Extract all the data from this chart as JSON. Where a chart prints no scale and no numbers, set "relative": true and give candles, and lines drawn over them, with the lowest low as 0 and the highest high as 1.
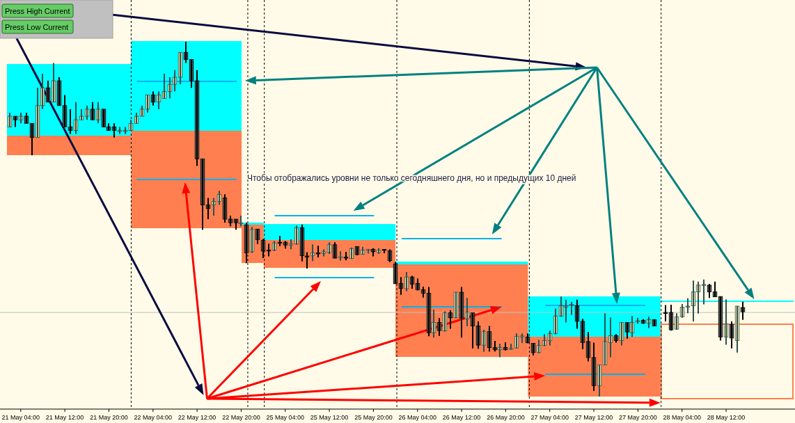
{
  "chart_data": {
    "type": "candlestick",
    "relative": true,
    "categories": [
      null,
      null,
      "21 May 04:00",
      null,
      null,
      null,
      null,
      null,
      null,
      null,
      "21 May 12:00",
      null,
      null,
      null,
      null,
      null,
      null,
      null,
      "21 May 20:00",
      null,
      null,
      null,
      null,
      null,
      null,
      null,
      "22 May 04:00",
      null,
      null,
      null,
      null,
      null,
      null,
      null,
      "22 May 12:00",
      null,
      null,
      null,
      null,
      null,
      null,
      null,
      "22 May 20:00",
      null,
      null,
      null,
      null,
      null,
      null,
      null,
      "25 May 04:00",
      null,
      null,
      null,
      null,
      null,
      null,
      null,
      "25 May 12:00",
      null,
      null,
      null,
      null,
      null,
      null,
      null,
      "25 May 20:00",
      null,
      null,
      null,
      null,
      null,
      null,
      null,
      "26 May 04:00",
      null,
      null,
      null,
      null,
      null,
      null,
      null,
      "26 May 12:00",
      null,
      null,
      null,
      null,
      null,
      null,
      null,
      "26 May 20:00",
      null,
      null,
      null,
      null,
      null,
      null,
      null,
      "27 May 04:00",
      null,
      null,
      null,
      null,
      null,
      null,
      null,
      "27 May 12:00",
      null,
      null,
      null,
      null,
      null,
      null,
      null,
      "27 May 20:00",
      null,
      null,
      null,
      null,
      null,
      null,
      null,
      "28 May 04:00",
      null,
      null,
      null,
      null,
      null,
      null,
      null,
      "28 May 12:00",
      null,
      null,
      null,
      null,
      null,
      null,
      null,
      null,
      null,
      null,
      null,
      null
    ],
    "ohlc": [
      [
        0.76,
        0.8,
        0.76,
        0.79
      ],
      [
        0.79,
        0.79,
        0.76,
        0.78
      ],
      [
        0.78,
        0.8,
        0.77,
        0.79
      ],
      [
        0.79,
        0.8,
        0.77,
        0.77
      ],
      [
        0.77,
        0.77,
        0.68,
        0.73
      ],
      [
        0.73,
        0.87,
        0.73,
        0.82
      ],
      [
        0.82,
        0.91,
        0.81,
        0.87
      ],
      [
        0.87,
        0.89,
        0.83,
        0.83
      ],
      [
        0.83,
        0.94,
        0.83,
        0.89
      ],
      [
        0.89,
        0.9,
        0.82,
        0.82
      ],
      [
        0.82,
        0.85,
        0.76,
        0.76
      ],
      [
        0.76,
        0.81,
        0.74,
        0.75
      ],
      [
        0.75,
        0.83,
        0.74,
        0.78
      ],
      [
        0.78,
        0.81,
        0.78,
        0.79
      ],
      [
        0.79,
        0.82,
        0.78,
        0.81
      ],
      [
        0.81,
        0.83,
        0.78,
        0.78
      ],
      [
        0.78,
        0.83,
        0.77,
        0.81
      ],
      [
        0.81,
        0.81,
        0.76,
        0.76
      ],
      [
        0.76,
        0.77,
        0.75,
        0.75
      ],
      [
        0.76,
        0.77,
        0.73,
        0.75
      ],
      [
        0.75,
        0.76,
        0.74,
        0.75
      ],
      [
        0.75,
        0.76,
        0.74,
        0.75
      ],
      [
        0.75,
        0.78,
        0.75,
        0.77
      ],
      [
        0.77,
        0.8,
        0.77,
        0.79
      ],
      [
        0.79,
        0.82,
        0.79,
        0.81
      ],
      [
        0.81,
        0.85,
        0.8,
        0.85
      ],
      [
        0.85,
        0.86,
        0.82,
        0.83
      ],
      [
        0.83,
        0.86,
        0.81,
        0.85
      ],
      [
        0.84,
        0.91,
        0.84,
        0.86
      ],
      [
        0.86,
        0.9,
        0.84,
        0.88
      ],
      [
        0.88,
        0.92,
        0.86,
        0.9
      ],
      [
        0.9,
        0.97,
        0.88,
        0.97
      ],
      [
        0.97,
        1,
        0.94,
        0.95
      ],
      [
        0.95,
        0.95,
        0.87,
        0.89
      ],
      [
        0.89,
        0.92,
        0.65,
        0.67
      ],
      [
        0.67,
        0.67,
        0.47,
        0.54
      ],
      [
        0.54,
        0.56,
        0.5,
        0.53
      ],
      [
        0.54,
        0.56,
        0.51,
        0.55
      ],
      [
        0.55,
        0.58,
        0.54,
        0.57
      ],
      [
        0.56,
        0.57,
        0.49,
        0.5
      ],
      [
        0.5,
        0.51,
        0.48,
        0.49
      ],
      [
        0.5,
        0.5,
        0.47,
        0.49
      ],
      [
        0.49,
        0.51,
        0.48,
        0.49
      ],
      [
        0.484,
        0.49,
        0.376,
        0.405
      ],
      [
        0.408,
        0.478,
        0.405,
        0.471
      ],
      [
        0.472,
        0.472,
        0.43,
        0.442
      ],
      [
        0.44,
        0.444,
        0.39,
        0.41
      ],
      [
        0.413,
        0.431,
        0.395,
        0.411
      ],
      [
        0.413,
        0.438,
        0.41,
        0.433
      ],
      [
        0.435,
        0.453,
        0.424,
        0.433
      ],
      [
        0.435,
        0.438,
        0.417,
        0.427
      ],
      [
        0.427,
        0.443,
        0.415,
        0.431
      ],
      [
        0.43,
        0.482,
        0.428,
        0.476
      ],
      [
        0.476,
        0.485,
        0.381,
        0.397
      ],
      [
        0.396,
        0.407,
        0.361,
        0.395
      ],
      [
        0.397,
        0.429,
        0.382,
        0.405
      ],
      [
        0.405,
        0.425,
        0.392,
        0.404
      ],
      [
        0.403,
        0.415,
        0.395,
        0.408
      ],
      [
        0.406,
        0.435,
        0.402,
        0.428
      ],
      [
        0.428,
        0.435,
        0.39,
        0.39
      ],
      [
        0.393,
        0.41,
        0.383,
        0.394
      ],
      [
        0.393,
        0.408,
        0.384,
        0.391
      ],
      [
        0.389,
        0.42,
        0.388,
        0.417
      ],
      [
        0.423,
        0.423,
        0.398,
        0.4
      ],
      [
        0.401,
        0.422,
        0.4,
        0.413
      ],
      [
        0.413,
        0.415,
        0.403,
        0.415
      ],
      [
        0.415,
        0.418,
        0.395,
        0.408
      ],
      [
        0.406,
        0.418,
        0.402,
        0.413
      ],
      [
        0.415,
        0.415,
        0.404,
        0.412
      ],
      [
        0.411,
        0.415,
        0.379,
        0.383
      ],
      [
        0.374,
        0.38,
        0.318,
        0.318
      ],
      [
        0.319,
        0.337,
        0.287,
        0.305
      ],
      [
        0.304,
        0.351,
        0.297,
        0.337
      ],
      [
        0.337,
        0.34,
        0.304,
        0.317
      ],
      [
        0.319,
        0.333,
        0.299,
        0.301
      ],
      [
        0.301,
        0.31,
        0.279,
        0.291
      ],
      [
        0.291,
        0.309,
        0.17,
        0.18
      ],
      [
        0.18,
        0.245,
        0.166,
        0.209
      ],
      [
        0.209,
        0.221,
        0.171,
        0.186
      ],
      [
        0.185,
        0.24,
        0.183,
        0.236
      ],
      [
        0.236,
        0.243,
        0.191,
        0.222
      ],
      [
        0.222,
        0.294,
        0.221,
        0.294
      ],
      [
        0.294,
        0.309,
        0.166,
        0.221
      ],
      [
        0.219,
        0.278,
        0.198,
        0.238
      ],
      [
        0.236,
        0.236,
        0.136,
        0.199
      ],
      [
        0.199,
        0.212,
        0.135,
        0.145
      ],
      [
        0.145,
        0.188,
        0.126,
        0.183
      ],
      [
        0.183,
        0.199,
        0.127,
        0.138
      ],
      [
        0.138,
        0.157,
        0.127,
        0.132
      ],
      [
        0.132,
        0.149,
        0.111,
        0.138
      ],
      [
        0.138,
        0.153,
        0.13,
        0.132
      ],
      [
        0.135,
        0.149,
        0.132,
        0.136
      ],
      [
        0.137,
        0.178,
        0.136,
        0.17
      ],
      [
        0.17,
        0.178,
        0.151,
        0.171
      ],
      [
        0.168,
        0.178,
        0.15,
        0.152
      ],
      [
        0.15,
        0.15,
        0.116,
        0.124
      ],
      [
        0.124,
        0.16,
        0.122,
        0.144
      ],
      [
        0.144,
        0.176,
        0.142,
        0.158
      ],
      [
        0.158,
        0.186,
        0.144,
        0.178
      ],
      [
        0.178,
        0.248,
        0.175,
        0.227
      ],
      [
        0.227,
        0.282,
        0.225,
        0.256
      ],
      [
        0.254,
        0.273,
        0.209,
        0.255
      ],
      [
        0.26,
        0.267,
        0.23,
        0.26
      ],
      [
        0.256,
        0.273,
        0.191,
        0.212
      ],
      [
        0.212,
        0.219,
        0.134,
        0.152
      ],
      [
        0.155,
        0.182,
        0.099,
        0.11
      ],
      [
        0.11,
        0.152,
        0.016,
        0.031
      ],
      [
        0.031,
        0.089,
        0,
        0.089
      ],
      [
        0.089,
        0.235,
        0.089,
        0.155
      ],
      [
        0.152,
        0.223,
        0.111,
        0.172
      ],
      [
        0.172,
        0.176,
        0.152,
        0.158
      ],
      [
        0.158,
        0.209,
        0.144,
        0.209
      ],
      [
        0.209,
        0.209,
        0.163,
        0.182
      ],
      [
        0.18,
        0.227,
        0.168,
        0.209
      ],
      [
        0.211,
        0.222,
        0.205,
        0.214
      ],
      [
        0.215,
        0.218,
        0.205,
        0.207
      ],
      [
        0.207,
        0.225,
        0.193,
        0.217
      ],
      [
        0.217,
        0.217,
        0.199,
        0.199
      ],
      null,
      [
        0.237,
        0.258,
        0.212,
        0.235
      ],
      [
        0.237,
        0.259,
        0.186,
        0.188
      ],
      [
        0.19,
        0.235,
        0.188,
        0.225
      ],
      [
        0.225,
        0.261,
        0.222,
        0.252
      ],
      [
        0.255,
        0.277,
        0.235,
        0.255
      ],
      [
        0.256,
        0.327,
        0.212,
        0.295
      ],
      [
        0.295,
        0.324,
        0.234,
        0.314
      ],
      [
        0.316,
        0.33,
        0.26,
        0.316
      ],
      [
        0.314,
        0.317,
        0.278,
        0.295
      ],
      [
        0.295,
        0.324,
        0.281,
        0.281
      ],
      [
        0.282,
        0.282,
        0.158,
        0.168
      ],
      [
        0.168,
        0.274,
        0.146,
        0.205
      ],
      [
        0.203,
        0.212,
        0.136,
        0.165
      ],
      [
        0.158,
        0.255,
        0.124,
        0.255
      ],
      [
        0.251,
        0.267,
        0.216,
        0.239
      ],
      null,
      null,
      null,
      null,
      null,
      null,
      null,
      null,
      null
    ],
    "ref_lines": [
      {
        "axis": "y",
        "value": 0.237,
        "color": "#c0c0c0",
        "line_style": "solid"
      }
    ],
    "annotations": [
      "Press High Current",
      "Press Low Current",
      "Чтобы отображались уровни не только сегодняшнего дня, но и предыдущих 10 дней"
    ]
  }
}
